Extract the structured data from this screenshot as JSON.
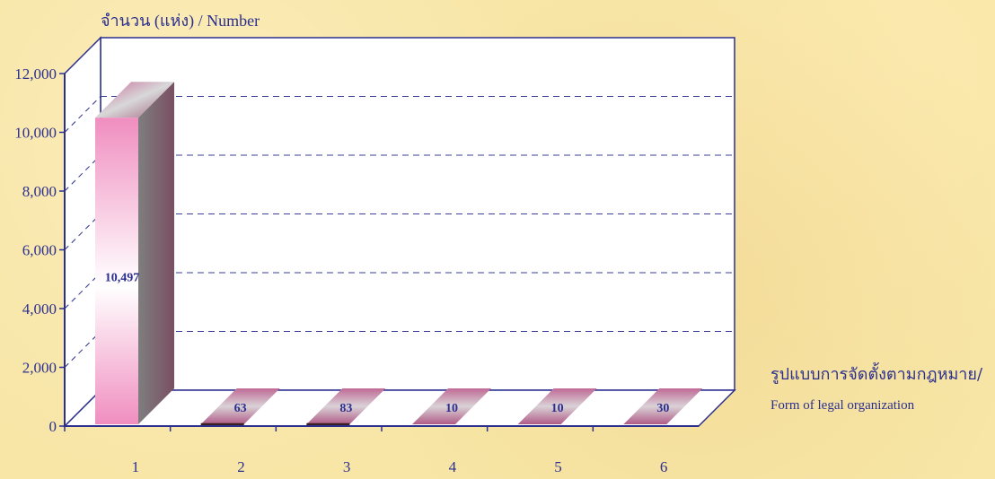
{
  "chart_data": {
    "type": "bar",
    "ylabel": "จำนวน (แห่ง) / Number",
    "xlabel_thai": "รูปแบบการจัดตั้งตามกฎหมาย/",
    "xlabel_eng": "Form of  legal organization",
    "categories": [
      "1",
      "2",
      "3",
      "4",
      "5",
      "6"
    ],
    "values": [
      10497,
      63,
      83,
      10,
      10,
      30
    ],
    "data_labels": [
      "10,497",
      "63",
      "83",
      "10",
      "10",
      "30"
    ],
    "ylim": [
      0,
      12000
    ],
    "yticks": [
      0,
      2000,
      4000,
      6000,
      8000,
      10000,
      12000
    ],
    "ytick_labels": [
      "0",
      "2,000",
      "4,000",
      "6,000",
      "8,000",
      "10,000",
      "12,000"
    ],
    "grid": true,
    "colors": {
      "axis": "#2b2f8f",
      "grid": "#3a3f9a",
      "bar_front_top": "#f08ec0",
      "bar_front_mid": "#ffffff",
      "bar_side": "#7a5a66",
      "label": "#2b2f8f"
    }
  }
}
